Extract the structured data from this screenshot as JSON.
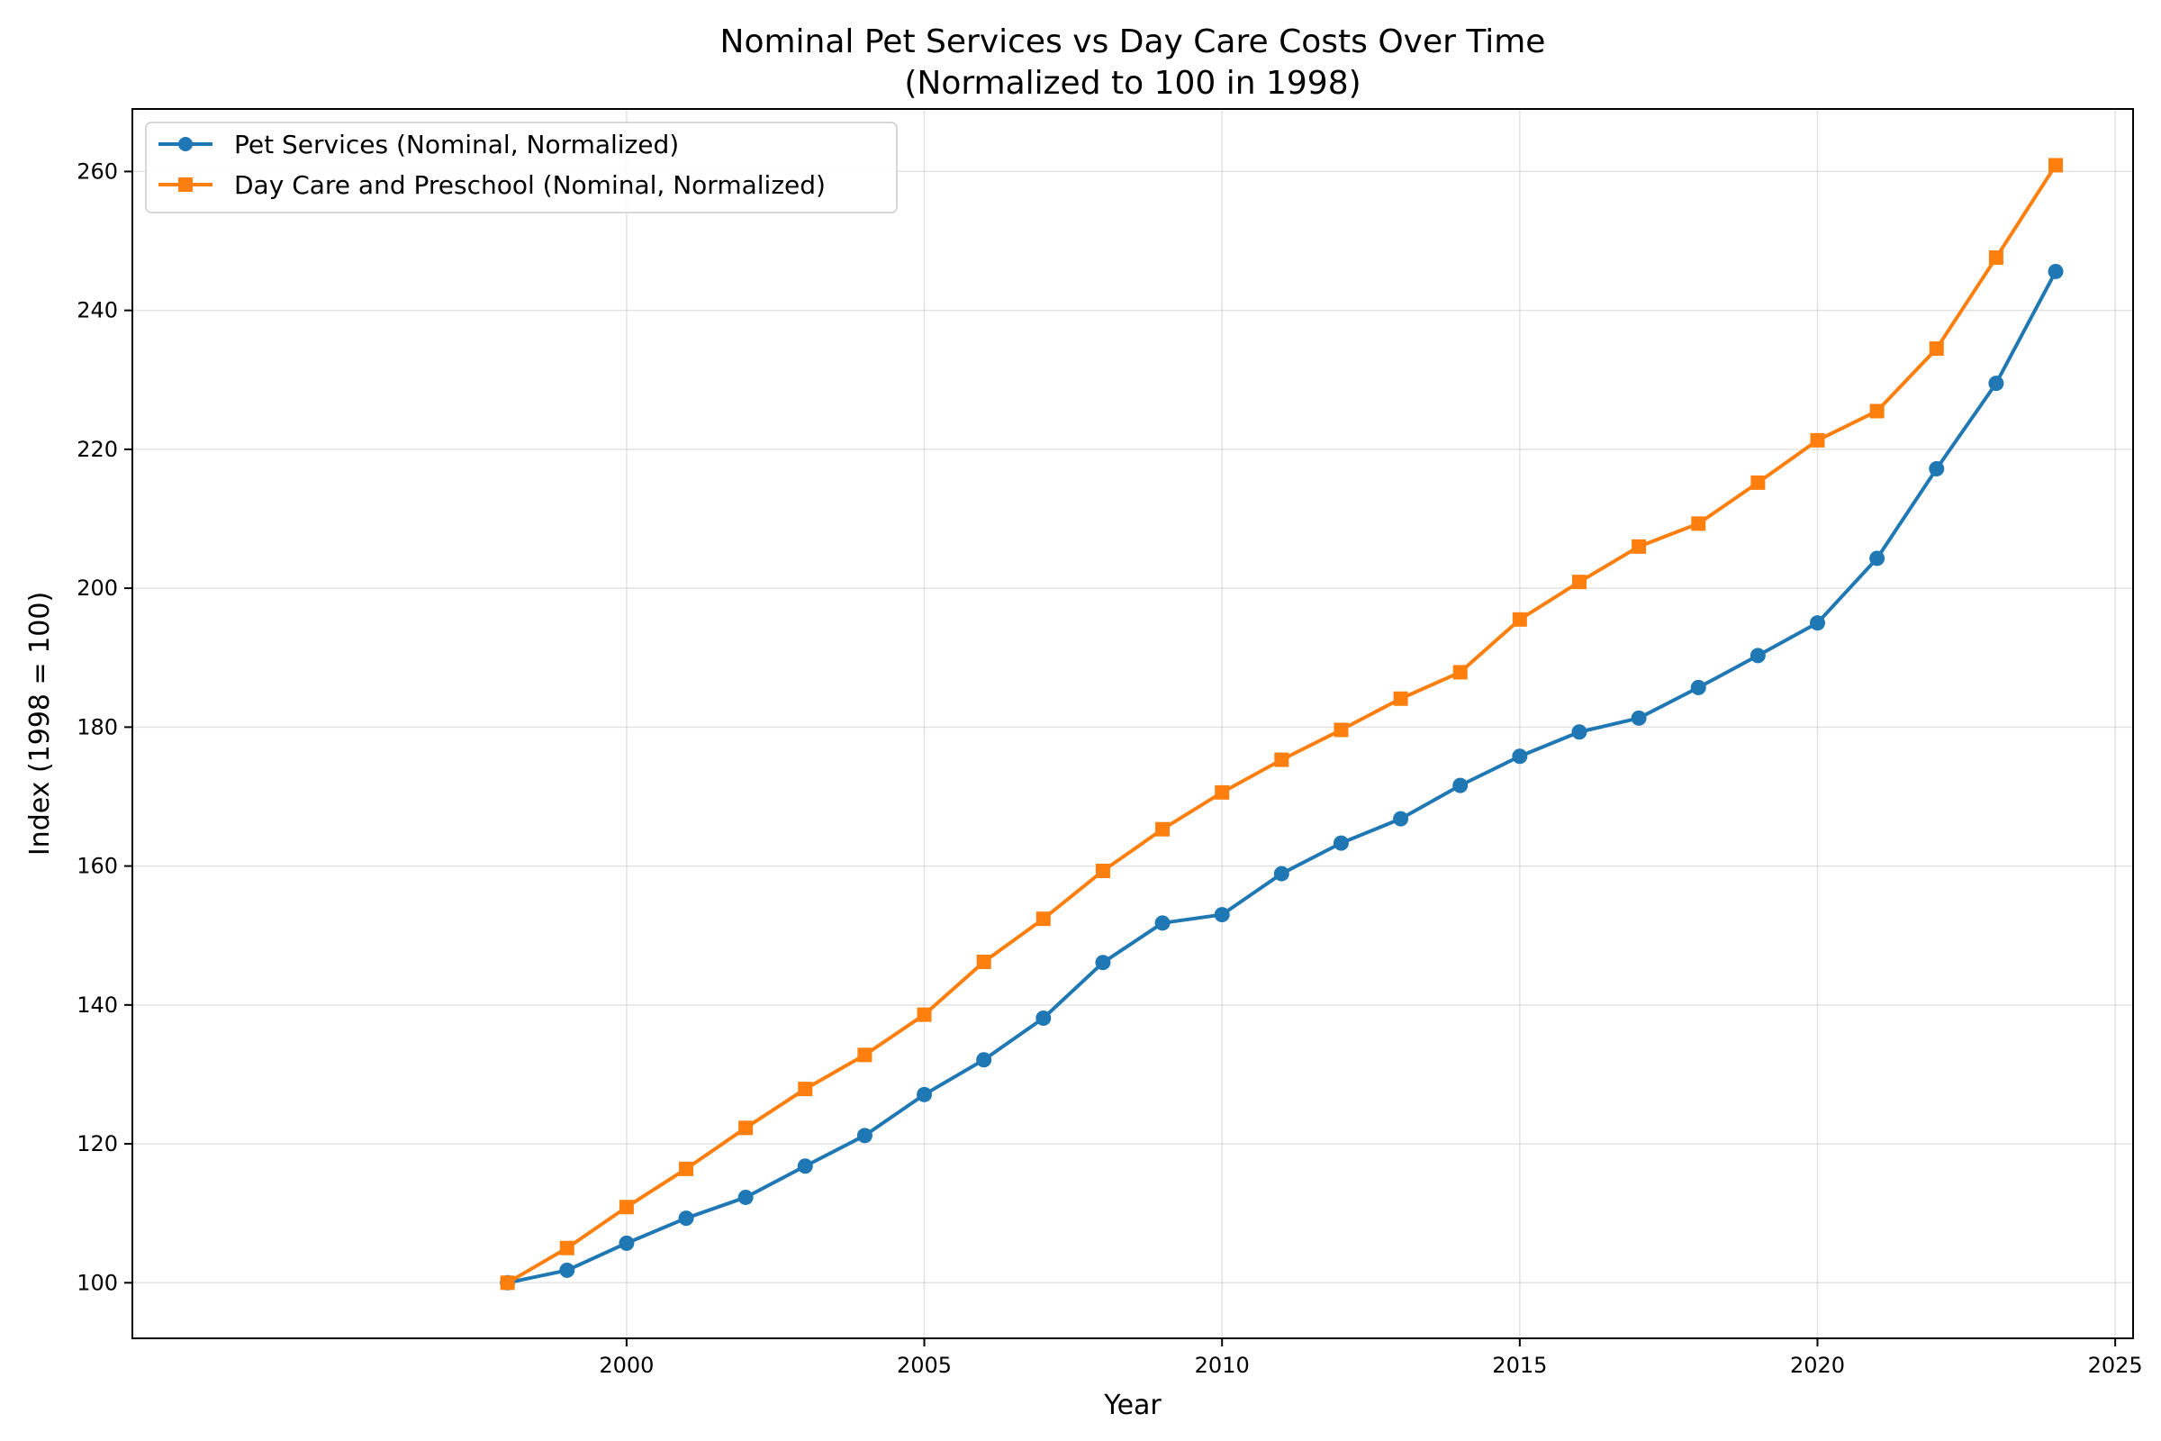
{
  "chart_data": {
    "type": "line",
    "title_line1": "Nominal Pet Services vs Day Care Costs Over Time",
    "title_line2": "(Normalized to 100 in 1998)",
    "xlabel": "Year",
    "ylabel": "Index (1998 = 100)",
    "xlim": [
      1991.7,
      2025.3
    ],
    "ylim": [
      92,
      269
    ],
    "xticks": [
      2000,
      2005,
      2010,
      2015,
      2020,
      2025
    ],
    "yticks": [
      100,
      120,
      140,
      160,
      180,
      200,
      220,
      240,
      260
    ],
    "grid": true,
    "legend_position": "top-left",
    "x": [
      1998,
      1999,
      2000,
      2001,
      2002,
      2003,
      2004,
      2005,
      2006,
      2007,
      2008,
      2009,
      2010,
      2011,
      2012,
      2013,
      2014,
      2015,
      2016,
      2017,
      2018,
      2019,
      2020,
      2021,
      2022,
      2023,
      2024
    ],
    "series": [
      {
        "name": "Pet Services (Nominal, Normalized)",
        "color": "#1f77b4",
        "marker": "circle",
        "values": [
          100.0,
          101.8,
          105.7,
          109.3,
          112.3,
          116.8,
          121.2,
          127.1,
          132.1,
          138.1,
          146.1,
          151.8,
          153.0,
          158.9,
          163.3,
          166.8,
          171.6,
          175.8,
          179.3,
          181.3,
          185.7,
          190.3,
          195.0,
          204.3,
          217.2,
          229.5,
          245.6
        ]
      },
      {
        "name": "Day Care and Preschool (Nominal, Normalized)",
        "color": "#ff7f0e",
        "marker": "square",
        "values": [
          100.0,
          105.0,
          110.9,
          116.4,
          122.3,
          127.9,
          132.8,
          138.6,
          146.2,
          152.4,
          159.3,
          165.3,
          170.6,
          175.3,
          179.6,
          184.1,
          187.9,
          195.5,
          200.9,
          206.0,
          209.3,
          215.2,
          221.3,
          225.5,
          234.5,
          247.6,
          260.9
        ]
      }
    ]
  }
}
